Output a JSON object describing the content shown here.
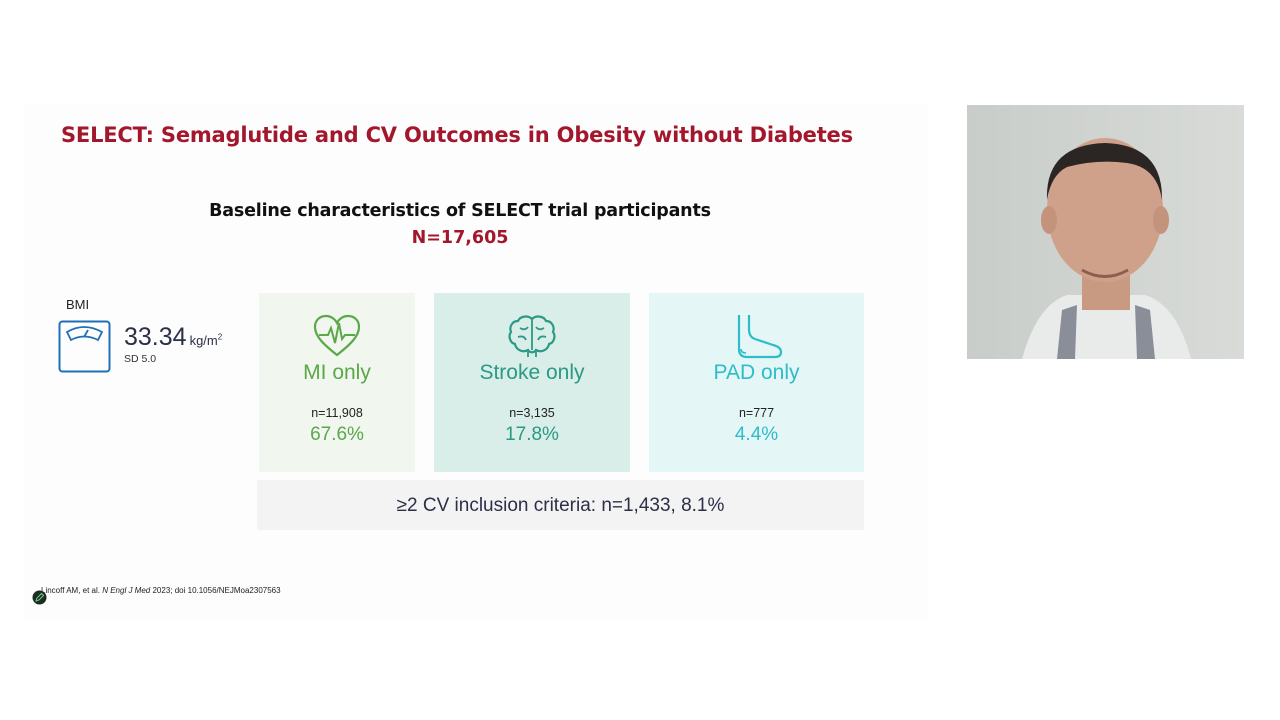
{
  "slide": {
    "title": "SELECT: Semaglutide and CV Outcomes in Obesity without Diabetes",
    "subtitle": "Baseline characteristics of SELECT trial participants",
    "n_total": "N=17,605",
    "bmi": {
      "label": "BMI",
      "value": "33.34",
      "unit": "kg/m",
      "unit_sup": "2",
      "sd": "SD 5.0",
      "icon": "scale-icon"
    },
    "cards": [
      {
        "label": "MI only",
        "n": "n=11,908",
        "pct": "67.6%",
        "icon": "heart-ekg-icon",
        "color": "#5aa848"
      },
      {
        "label": "Stroke only",
        "n": "n=3,135",
        "pct": "17.8%",
        "icon": "brain-icon",
        "color": "#2a9a84"
      },
      {
        "label": "PAD only",
        "n": "n=777",
        "pct": "4.4%",
        "icon": "foot-icon",
        "color": "#2cbdc9"
      }
    ],
    "criteria": "≥2 CV inclusion criteria: n=1,433, 8.1%",
    "citation": {
      "authors": "Lincoff AM, et al. ",
      "journal": "N Engl J Med",
      "rest": " 2023; doi 10.1056/NEJMoa2307563"
    },
    "colors": {
      "title": "#a3172d",
      "text_dark": "#2b2f47"
    }
  },
  "presenter": {
    "icon": "presenter-video-feed"
  },
  "annotation_tool": {
    "icon": "pen-icon"
  }
}
